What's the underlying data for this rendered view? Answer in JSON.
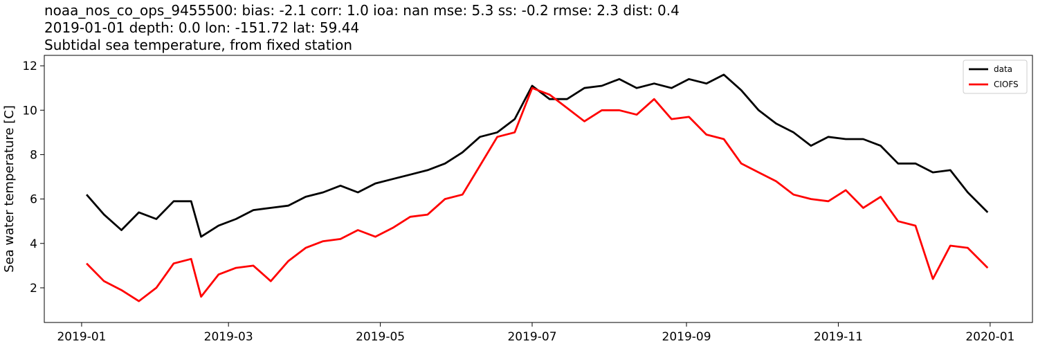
{
  "chart_data": {
    "type": "line",
    "title_lines": [
      "noaa_nos_co_ops_9455500: bias: -2.1  corr: 1.0  ioa: nan  mse: 5.3  ss: -0.2  rmse: 2.3  dist: 0.4",
      "2019-01-01 depth: 0.0 lon: -151.72 lat: 59.44",
      "Subtidal sea temperature, from fixed station"
    ],
    "ylabel": "Sea water temperature [C]",
    "x": [
      "2019-01-03",
      "2019-01-10",
      "2019-01-17",
      "2019-01-24",
      "2019-01-31",
      "2019-02-07",
      "2019-02-14",
      "2019-02-18",
      "2019-02-25",
      "2019-03-04",
      "2019-03-11",
      "2019-03-18",
      "2019-03-25",
      "2019-04-01",
      "2019-04-08",
      "2019-04-15",
      "2019-04-22",
      "2019-04-29",
      "2019-05-06",
      "2019-05-13",
      "2019-05-20",
      "2019-05-27",
      "2019-06-03",
      "2019-06-10",
      "2019-06-17",
      "2019-06-24",
      "2019-07-01",
      "2019-07-08",
      "2019-07-15",
      "2019-07-22",
      "2019-07-29",
      "2019-08-05",
      "2019-08-12",
      "2019-08-19",
      "2019-08-26",
      "2019-09-02",
      "2019-09-09",
      "2019-09-16",
      "2019-09-23",
      "2019-09-30",
      "2019-10-07",
      "2019-10-14",
      "2019-10-21",
      "2019-10-28",
      "2019-11-04",
      "2019-11-11",
      "2019-11-18",
      "2019-11-25",
      "2019-12-02",
      "2019-12-09",
      "2019-12-16",
      "2019-12-23",
      "2019-12-31"
    ],
    "series": [
      {
        "name": "data",
        "color": "#000000",
        "values": [
          6.2,
          5.3,
          4.6,
          5.4,
          5.1,
          5.9,
          5.9,
          4.3,
          4.8,
          5.1,
          5.5,
          5.6,
          5.7,
          6.1,
          6.3,
          6.6,
          6.3,
          6.7,
          6.9,
          7.1,
          7.3,
          7.6,
          8.1,
          8.8,
          9.0,
          9.6,
          11.1,
          10.5,
          10.5,
          11.0,
          11.1,
          11.4,
          11.0,
          11.2,
          11.0,
          11.4,
          11.2,
          11.6,
          10.9,
          10.0,
          9.4,
          9.0,
          8.4,
          8.8,
          8.7,
          8.7,
          8.4,
          7.6,
          7.6,
          7.2,
          7.3,
          6.3,
          5.4
        ]
      },
      {
        "name": "CIOFS",
        "color": "#ff0000",
        "values": [
          3.1,
          2.3,
          1.9,
          1.4,
          2.0,
          3.1,
          3.3,
          1.6,
          2.6,
          2.9,
          3.0,
          2.3,
          3.2,
          3.8,
          4.1,
          4.2,
          4.6,
          4.3,
          4.7,
          5.2,
          5.3,
          6.0,
          6.2,
          7.5,
          8.8,
          9.0,
          11.0,
          10.7,
          10.1,
          9.5,
          10.0,
          10.0,
          9.8,
          10.5,
          9.6,
          9.7,
          8.9,
          8.7,
          7.6,
          7.2,
          6.8,
          6.2,
          6.0,
          5.9,
          6.4,
          5.6,
          6.1,
          5.0,
          4.8,
          2.4,
          3.9,
          3.8,
          2.9
        ]
      }
    ],
    "xlim": [
      "2018-12-17",
      "2020-01-18"
    ],
    "xticks": [
      {
        "value": "2019-01-01",
        "label": "2019-01"
      },
      {
        "value": "2019-03-01",
        "label": "2019-03"
      },
      {
        "value": "2019-05-01",
        "label": "2019-05"
      },
      {
        "value": "2019-07-01",
        "label": "2019-07"
      },
      {
        "value": "2019-09-01",
        "label": "2019-09"
      },
      {
        "value": "2019-11-01",
        "label": "2019-11"
      },
      {
        "value": "2020-01-01",
        "label": "2020-01"
      }
    ],
    "ylim": [
      0.44,
      12.47
    ],
    "yticks": [
      2,
      4,
      6,
      8,
      10,
      12
    ],
    "legend": "upper right"
  }
}
